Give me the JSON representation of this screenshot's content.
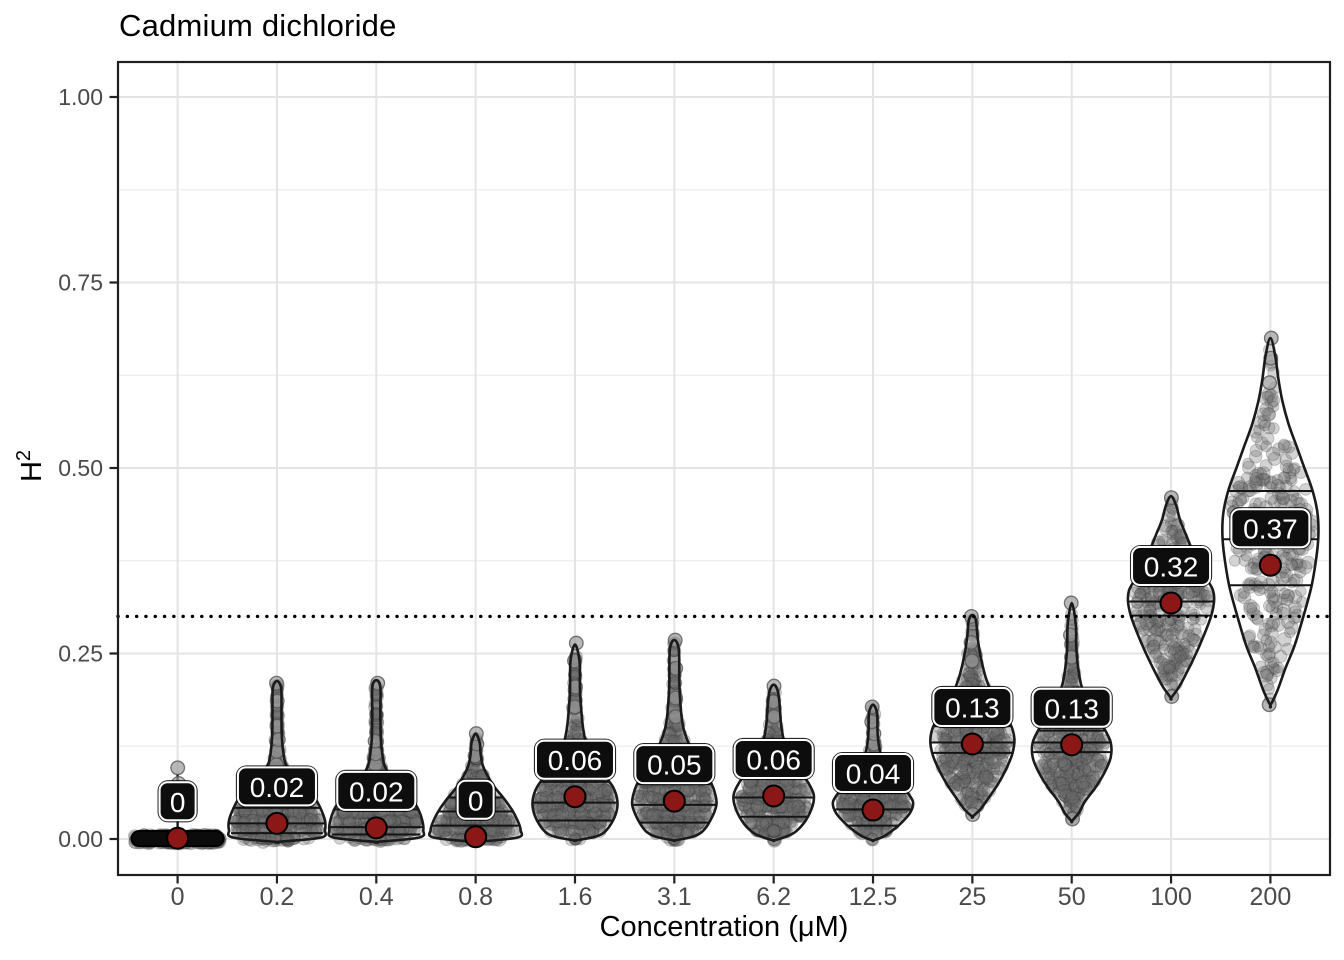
{
  "title": "Cadmium dichloride",
  "x_axis": {
    "label": "Concentration (μM)",
    "tick_labels": [
      "0",
      "0.2",
      "0.4",
      "0.8",
      "1.6",
      "3.1",
      "6.2",
      "12.5",
      "25",
      "50",
      "100",
      "200"
    ]
  },
  "y_axis": {
    "label_base": "H",
    "label_sup": "2",
    "tick_labels": [
      "1.00",
      "0.75",
      "0.50",
      "0.25",
      "0.00"
    ],
    "tick_values": [
      1.0,
      0.75,
      0.5,
      0.25,
      0.0
    ]
  },
  "colors": {
    "mean_point": "#8B1717",
    "violin_outline": "#1a1a1a",
    "label_bg": "#0d0d0d",
    "label_text": "#ffffff",
    "grid_major": "#e4e4e4",
    "grid_minor": "#f0f0f0",
    "tick_text": "#4a4a4a",
    "panel_border": "#1f1f1f",
    "data_point": "#6e6e6e",
    "reference_line": "#000000"
  },
  "chart_data": {
    "type": "violin",
    "title": "Cadmium dichloride",
    "xlabel": "Concentration (μM)",
    "ylabel": "H²",
    "ylim": [
      0,
      1.0
    ],
    "y_ticks": [
      0,
      0.25,
      0.5,
      0.75,
      1.0
    ],
    "y_minor_ticks": [
      0.125,
      0.375,
      0.625,
      0.875
    ],
    "reference_y": 0.3,
    "grid": true,
    "categories": [
      "0",
      "0.2",
      "0.4",
      "0.8",
      "1.6",
      "3.1",
      "6.2",
      "12.5",
      "25",
      "50",
      "100",
      "200"
    ],
    "mean_labels": [
      "0",
      "0.02",
      "0.02",
      "0",
      "0.06",
      "0.05",
      "0.06",
      "0.04",
      "0.13",
      "0.13",
      "0.32",
      "0.37"
    ],
    "mean_values": [
      0.001,
      0.021,
      0.015,
      0.003,
      0.057,
      0.051,
      0.058,
      0.039,
      0.128,
      0.127,
      0.318,
      0.369
    ],
    "violins": [
      {
        "category": "0",
        "label": "0",
        "mean": 0.001,
        "flat": true,
        "n_points": 320,
        "profile": [
          [
            -0.006,
            0
          ],
          [
            0,
            46
          ],
          [
            0.006,
            0
          ]
        ],
        "quantiles": [],
        "extra_points": [
          0.075,
          0.096
        ]
      },
      {
        "category": "0.2",
        "label": "0.02",
        "mean": 0.021,
        "n_points": 500,
        "quantize": 0.012,
        "profile": [
          [
            -0.004,
            0
          ],
          [
            0.002,
            44
          ],
          [
            0.012,
            48
          ],
          [
            0.025,
            48
          ],
          [
            0.04,
            44
          ],
          [
            0.055,
            38
          ],
          [
            0.07,
            28
          ],
          [
            0.085,
            16
          ],
          [
            0.1,
            9
          ],
          [
            0.115,
            6.5
          ],
          [
            0.135,
            5
          ],
          [
            0.16,
            4.5
          ],
          [
            0.185,
            4.5
          ],
          [
            0.205,
            4
          ],
          [
            0.213,
            0
          ]
        ],
        "quantiles": [
          0.008,
          0.021,
          0.042
        ],
        "extra_points": [
          0.1,
          0.118,
          0.134,
          0.152,
          0.186,
          0.21
        ]
      },
      {
        "category": "0.4",
        "label": "0.02",
        "mean": 0.015,
        "n_points": 480,
        "quantize": 0.012,
        "profile": [
          [
            -0.004,
            0
          ],
          [
            0.002,
            43
          ],
          [
            0.012,
            47
          ],
          [
            0.025,
            46
          ],
          [
            0.04,
            42
          ],
          [
            0.055,
            35
          ],
          [
            0.07,
            25
          ],
          [
            0.085,
            14
          ],
          [
            0.1,
            8
          ],
          [
            0.115,
            6
          ],
          [
            0.135,
            4.5
          ],
          [
            0.17,
            4
          ],
          [
            0.205,
            4
          ],
          [
            0.214,
            0
          ]
        ],
        "quantiles": [
          0.006,
          0.016,
          0.04
        ],
        "extra_points": [
          0.1,
          0.115,
          0.132,
          0.21
        ]
      },
      {
        "category": "0.8",
        "label": "0",
        "mean": 0.003,
        "n_points": 430,
        "quantize": 0.012,
        "profile": [
          [
            -0.004,
            0
          ],
          [
            0.002,
            42
          ],
          [
            0.012,
            45
          ],
          [
            0.025,
            42
          ],
          [
            0.04,
            36
          ],
          [
            0.055,
            28
          ],
          [
            0.07,
            19
          ],
          [
            0.085,
            12
          ],
          [
            0.1,
            7
          ],
          [
            0.115,
            5
          ],
          [
            0.13,
            4
          ],
          [
            0.142,
            0
          ]
        ],
        "quantiles": [
          0.018,
          0.037,
          0.056
        ],
        "extra_points": [
          0.112,
          0.128,
          0.142
        ]
      },
      {
        "category": "1.6",
        "label": "0.06",
        "mean": 0.057,
        "n_points": 500,
        "quantize": 0.011,
        "profile": [
          [
            -0.002,
            0
          ],
          [
            0.003,
            20
          ],
          [
            0.01,
            30
          ],
          [
            0.025,
            38
          ],
          [
            0.04,
            42
          ],
          [
            0.055,
            42
          ],
          [
            0.07,
            38
          ],
          [
            0.085,
            30
          ],
          [
            0.1,
            22
          ],
          [
            0.115,
            16
          ],
          [
            0.13,
            11
          ],
          [
            0.15,
            8
          ],
          [
            0.17,
            6.5
          ],
          [
            0.2,
            5
          ],
          [
            0.24,
            4.5
          ],
          [
            0.262,
            0
          ]
        ],
        "quantiles": [
          0.025,
          0.049,
          0.077
        ],
        "extra_points": [
          0.178,
          0.205,
          0.24,
          0.264
        ]
      },
      {
        "category": "3.1",
        "label": "0.05",
        "mean": 0.051,
        "n_points": 520,
        "quantize": 0.011,
        "profile": [
          [
            -0.002,
            0
          ],
          [
            0.003,
            18
          ],
          [
            0.01,
            28
          ],
          [
            0.025,
            36
          ],
          [
            0.045,
            42
          ],
          [
            0.06,
            41
          ],
          [
            0.075,
            37
          ],
          [
            0.09,
            30
          ],
          [
            0.11,
            21
          ],
          [
            0.13,
            14
          ],
          [
            0.15,
            9
          ],
          [
            0.175,
            6.5
          ],
          [
            0.21,
            5
          ],
          [
            0.255,
            4.5
          ],
          [
            0.268,
            0
          ]
        ],
        "quantiles": [
          0.022,
          0.046,
          0.074
        ],
        "extra_points": [
          0.165,
          0.19,
          0.23,
          0.268
        ]
      },
      {
        "category": "6.2",
        "label": "0.06",
        "mean": 0.058,
        "n_points": 430,
        "quantize": 0.011,
        "profile": [
          [
            -0.002,
            0
          ],
          [
            0.003,
            12
          ],
          [
            0.01,
            22
          ],
          [
            0.025,
            32
          ],
          [
            0.045,
            39
          ],
          [
            0.06,
            40
          ],
          [
            0.075,
            35
          ],
          [
            0.09,
            27
          ],
          [
            0.105,
            19
          ],
          [
            0.12,
            13
          ],
          [
            0.14,
            9
          ],
          [
            0.16,
            7
          ],
          [
            0.18,
            6
          ],
          [
            0.2,
            4
          ],
          [
            0.208,
            0
          ]
        ],
        "quantiles": [
          0.03,
          0.056,
          0.085
        ],
        "extra_points": [
          0.165,
          0.185,
          0.206
        ]
      },
      {
        "category": "12.5",
        "label": "0.04",
        "mean": 0.039,
        "n_points": 360,
        "quantize": 0.011,
        "profile": [
          [
            -0.002,
            0
          ],
          [
            0.003,
            10
          ],
          [
            0.01,
            18
          ],
          [
            0.02,
            27
          ],
          [
            0.035,
            37
          ],
          [
            0.05,
            40
          ],
          [
            0.065,
            33
          ],
          [
            0.08,
            24
          ],
          [
            0.095,
            15
          ],
          [
            0.11,
            9
          ],
          [
            0.125,
            6
          ],
          [
            0.145,
            4.5
          ],
          [
            0.17,
            4
          ],
          [
            0.181,
            0
          ]
        ],
        "quantiles": [
          0.018,
          0.04,
          0.062
        ],
        "extra_points": [
          0.128,
          0.142,
          0.158,
          0.178
        ]
      },
      {
        "category": "25",
        "label": "0.13",
        "mean": 0.128,
        "n_points": 460,
        "profile": [
          [
            0.03,
            0
          ],
          [
            0.04,
            8
          ],
          [
            0.055,
            16
          ],
          [
            0.075,
            26
          ],
          [
            0.095,
            34
          ],
          [
            0.115,
            40
          ],
          [
            0.135,
            42
          ],
          [
            0.155,
            38
          ],
          [
            0.175,
            28
          ],
          [
            0.195,
            20
          ],
          [
            0.215,
            14
          ],
          [
            0.235,
            10
          ],
          [
            0.255,
            7
          ],
          [
            0.275,
            5
          ],
          [
            0.295,
            3.5
          ],
          [
            0.302,
            0
          ]
        ],
        "quantiles": [
          0.116,
          0.13,
          0.152
        ],
        "extra_points": [
          0.033,
          0.24,
          0.265,
          0.3
        ]
      },
      {
        "category": "50",
        "label": "0.13",
        "mean": 0.127,
        "n_points": 400,
        "profile": [
          [
            0.024,
            0
          ],
          [
            0.035,
            7
          ],
          [
            0.05,
            13
          ],
          [
            0.07,
            24
          ],
          [
            0.09,
            33
          ],
          [
            0.11,
            39
          ],
          [
            0.13,
            39
          ],
          [
            0.15,
            32
          ],
          [
            0.17,
            22
          ],
          [
            0.19,
            14
          ],
          [
            0.21,
            9
          ],
          [
            0.235,
            6
          ],
          [
            0.26,
            4.5
          ],
          [
            0.29,
            4
          ],
          [
            0.318,
            0
          ]
        ],
        "quantiles": [
          0.117,
          0.13,
          0.146
        ],
        "extra_points": [
          0.027,
          0.245,
          0.275,
          0.318
        ]
      },
      {
        "category": "100",
        "label": "0.32",
        "mean": 0.318,
        "n_points": 300,
        "profile": [
          [
            0.19,
            0
          ],
          [
            0.205,
            8
          ],
          [
            0.225,
            16
          ],
          [
            0.25,
            25
          ],
          [
            0.275,
            33
          ],
          [
            0.3,
            40
          ],
          [
            0.32,
            43
          ],
          [
            0.335,
            42
          ],
          [
            0.35,
            36
          ],
          [
            0.37,
            28
          ],
          [
            0.39,
            21
          ],
          [
            0.41,
            15
          ],
          [
            0.43,
            9
          ],
          [
            0.45,
            5
          ],
          [
            0.462,
            0
          ]
        ],
        "quantiles": [
          0.301,
          0.32,
          0.356
        ],
        "extra_points": [
          0.192,
          0.46
        ]
      },
      {
        "category": "200",
        "label": "0.37",
        "mean": 0.369,
        "n_points": 280,
        "profile": [
          [
            0.18,
            0
          ],
          [
            0.2,
            7
          ],
          [
            0.23,
            15
          ],
          [
            0.26,
            24
          ],
          [
            0.3,
            33
          ],
          [
            0.34,
            41
          ],
          [
            0.38,
            46
          ],
          [
            0.41,
            48
          ],
          [
            0.44,
            47
          ],
          [
            0.47,
            42
          ],
          [
            0.5,
            34
          ],
          [
            0.53,
            26
          ],
          [
            0.56,
            18
          ],
          [
            0.59,
            12
          ],
          [
            0.62,
            8
          ],
          [
            0.65,
            5
          ],
          [
            0.675,
            0
          ]
        ],
        "quantiles": [
          0.342,
          0.404,
          0.469
        ],
        "extra_points": [
          0.181,
          0.615,
          0.648,
          0.675
        ]
      }
    ]
  }
}
